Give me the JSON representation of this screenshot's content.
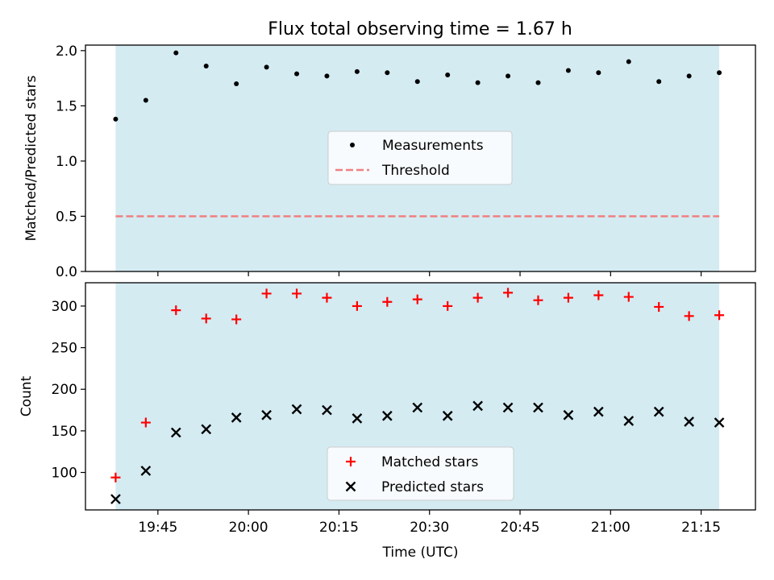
{
  "title": "Flux total observing time = 1.67 h",
  "colors": {
    "shade": "#add8e6",
    "threshold": "#f08080",
    "matched": "#ff0000",
    "predicted": "#000000",
    "measurement": "#000000"
  },
  "chart_data": [
    {
      "type": "scatter",
      "panel": "top",
      "title": "Flux total observing time = 1.67 h",
      "xlabel": "",
      "ylabel": "Matched/Predicted stars",
      "ylim": [
        0,
        2.05
      ],
      "yticks": [
        0.0,
        0.5,
        1.0,
        1.5,
        2.0
      ],
      "ytick_labels": [
        "0.0",
        "0.5",
        "1.0",
        "1.5",
        "2.0"
      ],
      "x_unit": "HH:MM UTC",
      "xlim": [
        "19:33",
        "21:24"
      ],
      "shaded_span": [
        "19:38",
        "21:18"
      ],
      "threshold": 0.5,
      "legend_position": "center",
      "legend": [
        "Measurements",
        "Threshold"
      ],
      "series": [
        {
          "name": "Measurements",
          "marker": "dot",
          "x": [
            "19:38",
            "19:43",
            "19:48",
            "19:53",
            "19:58",
            "20:03",
            "20:08",
            "20:13",
            "20:18",
            "20:23",
            "20:28",
            "20:33",
            "20:38",
            "20:43",
            "20:48",
            "20:53",
            "20:58",
            "21:03",
            "21:08",
            "21:13",
            "21:18"
          ],
          "values": [
            1.38,
            1.55,
            1.98,
            1.86,
            1.7,
            1.85,
            1.79,
            1.77,
            1.81,
            1.8,
            1.72,
            1.78,
            1.71,
            1.77,
            1.71,
            1.82,
            1.8,
            1.9,
            1.72,
            1.77,
            1.8
          ]
        },
        {
          "name": "Threshold",
          "style": "dashed",
          "x": [
            "19:38",
            "21:18"
          ],
          "values": [
            0.5,
            0.5
          ]
        }
      ]
    },
    {
      "type": "scatter",
      "panel": "bottom",
      "xlabel": "Time (UTC)",
      "ylabel": "Count",
      "ylim": [
        55,
        328
      ],
      "yticks": [
        100,
        150,
        200,
        250,
        300
      ],
      "ytick_labels": [
        "100",
        "150",
        "200",
        "250",
        "300"
      ],
      "x_unit": "HH:MM UTC",
      "xlim": [
        "19:33",
        "21:24"
      ],
      "xticks": [
        "19:45",
        "20:00",
        "20:15",
        "20:30",
        "20:45",
        "21:00",
        "21:15"
      ],
      "xtick_labels": [
        "19:45",
        "20:00",
        "20:15",
        "20:30",
        "20:45",
        "21:00",
        "21:15"
      ],
      "shaded_span": [
        "19:38",
        "21:18"
      ],
      "legend_position": "lower center",
      "legend": [
        "Matched stars",
        "Predicted stars"
      ],
      "series": [
        {
          "name": "Matched stars",
          "marker": "plus",
          "x": [
            "19:38",
            "19:43",
            "19:48",
            "19:53",
            "19:58",
            "20:03",
            "20:08",
            "20:13",
            "20:18",
            "20:23",
            "20:28",
            "20:33",
            "20:38",
            "20:43",
            "20:48",
            "20:53",
            "20:58",
            "21:03",
            "21:08",
            "21:13",
            "21:18"
          ],
          "values": [
            94,
            160,
            295,
            285,
            284,
            315,
            315,
            310,
            300,
            305,
            308,
            300,
            310,
            316,
            307,
            310,
            313,
            311,
            299,
            288,
            289
          ]
        },
        {
          "name": "Predicted stars",
          "marker": "x",
          "x": [
            "19:38",
            "19:43",
            "19:48",
            "19:53",
            "19:58",
            "20:03",
            "20:08",
            "20:13",
            "20:18",
            "20:23",
            "20:28",
            "20:33",
            "20:38",
            "20:43",
            "20:48",
            "20:53",
            "20:58",
            "21:03",
            "21:08",
            "21:13",
            "21:18"
          ],
          "values": [
            68,
            102,
            148,
            152,
            166,
            169,
            176,
            175,
            165,
            168,
            178,
            168,
            180,
            178,
            178,
            169,
            173,
            162,
            173,
            161,
            160
          ]
        }
      ]
    }
  ]
}
